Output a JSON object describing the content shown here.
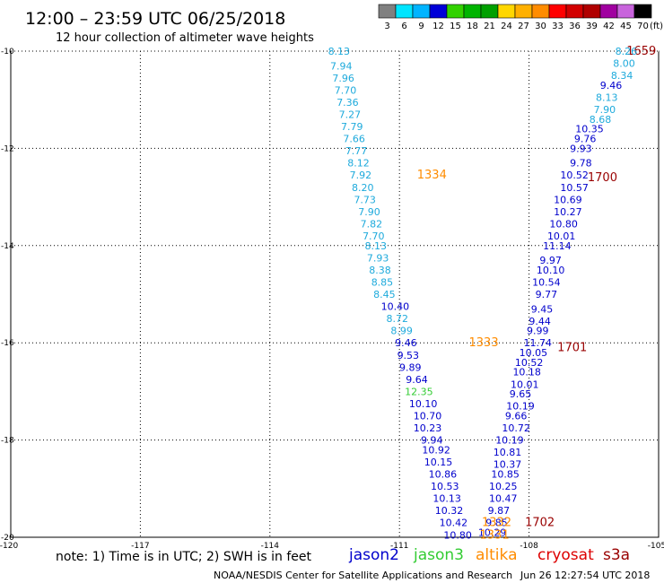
{
  "header": {
    "title": "12:00 – 23:59 UTC 06/25/2018",
    "subtitle": "12 hour collection of altimeter wave heights"
  },
  "colorbar": {
    "unit": "(ft)",
    "bins": [
      {
        "label": "3",
        "color": "#808080"
      },
      {
        "label": "6",
        "color": "#00e5ff"
      },
      {
        "label": "9",
        "color": "#00b4ff"
      },
      {
        "label": "12",
        "color": "#0000d8"
      },
      {
        "label": "15",
        "color": "#32d200"
      },
      {
        "label": "18",
        "color": "#00b400"
      },
      {
        "label": "21",
        "color": "#00a000"
      },
      {
        "label": "24",
        "color": "#ffd700"
      },
      {
        "label": "27",
        "color": "#ffb000"
      },
      {
        "label": "30",
        "color": "#ff8c00"
      },
      {
        "label": "33",
        "color": "#ff0000"
      },
      {
        "label": "36",
        "color": "#d20000"
      },
      {
        "label": "39",
        "color": "#b00000"
      },
      {
        "label": "42",
        "color": "#a000a0"
      },
      {
        "label": "45",
        "color": "#c864dc"
      },
      {
        "label": "70",
        "color": "#000000"
      }
    ]
  },
  "chart_data": {
    "type": "scatter",
    "xlim": [
      -120,
      -105
    ],
    "ylim": [
      -20,
      -10
    ],
    "x_ticks": [
      {
        "value": -117,
        "label": "-117"
      },
      {
        "value": -114,
        "label": "-114"
      },
      {
        "value": -111,
        "label": "-111"
      },
      {
        "value": -108,
        "label": "-108"
      }
    ],
    "x_corner_left": "-120",
    "x_corner_right": "-105",
    "y_ticks": [
      {
        "value": -10,
        "label": "-10"
      },
      {
        "value": -12,
        "label": "-12"
      },
      {
        "value": -14,
        "label": "-14"
      },
      {
        "value": -16,
        "label": "-16"
      },
      {
        "value": -18,
        "label": "-18"
      },
      {
        "value": -20,
        "label": "-20"
      }
    ],
    "grid": true,
    "series": [
      {
        "name": "jason2",
        "color": "#0000cc",
        "points": [
          {
            "x": -106.1,
            "y": -10.7,
            "label": "9.46"
          },
          {
            "x": -106.6,
            "y": -11.6,
            "label": "10.35"
          },
          {
            "x": -106.7,
            "y": -11.8,
            "label": "9.76"
          },
          {
            "x": -106.8,
            "y": -12.0,
            "label": "9.93"
          },
          {
            "x": -106.8,
            "y": -12.3,
            "label": "9.78"
          },
          {
            "x": -106.95,
            "y": -12.55,
            "label": "10.52"
          },
          {
            "x": -106.95,
            "y": -12.8,
            "label": "10.57"
          },
          {
            "x": -107.1,
            "y": -13.05,
            "label": "10.69"
          },
          {
            "x": -107.1,
            "y": -13.3,
            "label": "10.27"
          },
          {
            "x": -107.2,
            "y": -13.55,
            "label": "10.80"
          },
          {
            "x": -107.25,
            "y": -13.8,
            "label": "10.01"
          },
          {
            "x": -107.35,
            "y": -14.0,
            "label": "11.14"
          },
          {
            "x": -107.5,
            "y": -14.3,
            "label": "9.97"
          },
          {
            "x": -107.5,
            "y": -14.5,
            "label": "10.10"
          },
          {
            "x": -107.6,
            "y": -14.75,
            "label": "10.54"
          },
          {
            "x": -107.6,
            "y": -15.0,
            "label": "9.77"
          },
          {
            "x": -107.7,
            "y": -15.3,
            "label": "9.45"
          },
          {
            "x": -107.75,
            "y": -15.55,
            "label": "9.44"
          },
          {
            "x": -107.8,
            "y": -15.75,
            "label": "9.99"
          },
          {
            "x": -107.8,
            "y": -16.0,
            "label": "11.74"
          },
          {
            "x": -107.9,
            "y": -16.2,
            "label": "10.05"
          },
          {
            "x": -108.0,
            "y": -16.4,
            "label": "10.52"
          },
          {
            "x": -108.05,
            "y": -16.6,
            "label": "10.18"
          },
          {
            "x": -108.1,
            "y": -16.85,
            "label": "10.01"
          },
          {
            "x": -108.2,
            "y": -17.05,
            "label": "9.65"
          },
          {
            "x": -108.2,
            "y": -17.3,
            "label": "10.19"
          },
          {
            "x": -108.3,
            "y": -17.5,
            "label": "9.66"
          },
          {
            "x": -108.3,
            "y": -17.75,
            "label": "10.72"
          },
          {
            "x": -108.45,
            "y": -18.0,
            "label": "10.19"
          },
          {
            "x": -108.5,
            "y": -18.25,
            "label": "10.81"
          },
          {
            "x": -108.5,
            "y": -18.5,
            "label": "10.37"
          },
          {
            "x": -108.55,
            "y": -18.7,
            "label": "10.85"
          },
          {
            "x": -108.6,
            "y": -18.95,
            "label": "10.25"
          },
          {
            "x": -108.6,
            "y": -19.2,
            "label": "10.47"
          },
          {
            "x": -108.7,
            "y": -19.45,
            "label": "9.87"
          },
          {
            "x": -108.75,
            "y": -19.7,
            "label": "9.85"
          },
          {
            "x": -108.85,
            "y": -19.9,
            "label": "10.29"
          },
          {
            "x": -110.85,
            "y": -16.0,
            "label": "9.46"
          },
          {
            "x": -110.8,
            "y": -16.25,
            "label": "9.53"
          },
          {
            "x": -110.75,
            "y": -16.5,
            "label": "9.89"
          },
          {
            "x": -110.6,
            "y": -16.75,
            "label": "9.64"
          },
          {
            "x": -110.45,
            "y": -17.25,
            "label": "10.10"
          },
          {
            "x": -110.35,
            "y": -17.5,
            "label": "10.70"
          },
          {
            "x": -110.35,
            "y": -17.75,
            "label": "10.23"
          },
          {
            "x": -110.25,
            "y": -18.0,
            "label": "9.94"
          },
          {
            "x": -110.15,
            "y": -18.2,
            "label": "10.92"
          },
          {
            "x": -110.1,
            "y": -18.45,
            "label": "10.15"
          },
          {
            "x": -110.0,
            "y": -18.7,
            "label": "10.86"
          },
          {
            "x": -109.95,
            "y": -18.95,
            "label": "10.53"
          },
          {
            "x": -109.9,
            "y": -19.2,
            "label": "10.13"
          },
          {
            "x": -109.85,
            "y": -19.45,
            "label": "10.32"
          },
          {
            "x": -109.75,
            "y": -19.7,
            "label": "10.42"
          },
          {
            "x": -109.65,
            "y": -19.95,
            "label": "10.80"
          },
          {
            "x": -111.1,
            "y": -15.25,
            "label": "10.40"
          }
        ]
      },
      {
        "name": "jason3",
        "color": "#33cc33",
        "points": [
          {
            "x": -110.55,
            "y": -17.0,
            "label": "12.35"
          }
        ]
      },
      {
        "name": "altika",
        "color": "#ff8c00",
        "points": [
          {
            "x": -110.25,
            "y": -12.55,
            "label": "1334"
          },
          {
            "x": -109.05,
            "y": -16.0,
            "label": "1333"
          },
          {
            "x": -108.75,
            "y": -19.7,
            "label": "1332"
          },
          {
            "x": -108.8,
            "y": -19.95,
            "label": "1331"
          }
        ]
      },
      {
        "name": "cryosat",
        "color": "#990000",
        "points": [
          {
            "x": -105.4,
            "y": -10.0,
            "label": "1659"
          },
          {
            "x": -106.3,
            "y": -12.6,
            "label": "1700"
          },
          {
            "x": -107.0,
            "y": -16.1,
            "label": "1701"
          },
          {
            "x": -107.75,
            "y": -19.7,
            "label": "1702"
          }
        ]
      },
      {
        "name": "",
        "color": "#1eaadc",
        "points": [
          {
            "x": -112.4,
            "y": -10.0,
            "label": "8.13"
          },
          {
            "x": -112.35,
            "y": -10.3,
            "label": "7.94"
          },
          {
            "x": -112.3,
            "y": -10.55,
            "label": "7.96"
          },
          {
            "x": -112.25,
            "y": -10.8,
            "label": "7.70"
          },
          {
            "x": -112.2,
            "y": -11.05,
            "label": "7.36"
          },
          {
            "x": -112.15,
            "y": -11.3,
            "label": "7.27"
          },
          {
            "x": -112.1,
            "y": -11.55,
            "label": "7.79"
          },
          {
            "x": -112.05,
            "y": -11.8,
            "label": "7.66"
          },
          {
            "x": -112.0,
            "y": -12.05,
            "label": "7.77"
          },
          {
            "x": -111.95,
            "y": -12.3,
            "label": "8.12"
          },
          {
            "x": -111.9,
            "y": -12.55,
            "label": "7.92"
          },
          {
            "x": -111.85,
            "y": -12.8,
            "label": "8.20"
          },
          {
            "x": -111.8,
            "y": -13.05,
            "label": "7.73"
          },
          {
            "x": -111.7,
            "y": -13.3,
            "label": "7.90"
          },
          {
            "x": -111.65,
            "y": -13.55,
            "label": "7.82"
          },
          {
            "x": -111.6,
            "y": -13.8,
            "label": "7.70"
          },
          {
            "x": -111.55,
            "y": -14.0,
            "label": "8.13"
          },
          {
            "x": -111.5,
            "y": -14.25,
            "label": "7.93"
          },
          {
            "x": -111.45,
            "y": -14.5,
            "label": "8.38"
          },
          {
            "x": -111.4,
            "y": -14.75,
            "label": "8.85"
          },
          {
            "x": -111.35,
            "y": -15.0,
            "label": "8.45"
          },
          {
            "x": -111.05,
            "y": -15.5,
            "label": "8.72"
          },
          {
            "x": -110.95,
            "y": -15.75,
            "label": "8.99"
          },
          {
            "x": -105.75,
            "y": -10.0,
            "label": "8.26"
          },
          {
            "x": -105.8,
            "y": -10.25,
            "label": "8.00"
          },
          {
            "x": -105.85,
            "y": -10.5,
            "label": "8.34"
          },
          {
            "x": -106.2,
            "y": -10.95,
            "label": "8.13"
          },
          {
            "x": -106.25,
            "y": -11.2,
            "label": "7.90"
          },
          {
            "x": -106.35,
            "y": -11.4,
            "label": "8.68"
          }
        ]
      }
    ]
  },
  "legend": {
    "note": "note:  1) Time is in UTC;  2) SWH is in feet",
    "items": [
      {
        "label": "jason2",
        "color": "#0000cc"
      },
      {
        "label": "jason3",
        "color": "#33cc33"
      },
      {
        "label": "altika",
        "color": "#ff8c00"
      },
      {
        "label": "cryosat",
        "color": "#dd0000"
      },
      {
        "label": "s3a",
        "color": "#990000"
      }
    ]
  },
  "footer": {
    "credit": "NOAA/NESDIS Center for Satellite Applications and Research",
    "timestamp": "Jun 26 12:27:54 UTC 2018"
  }
}
